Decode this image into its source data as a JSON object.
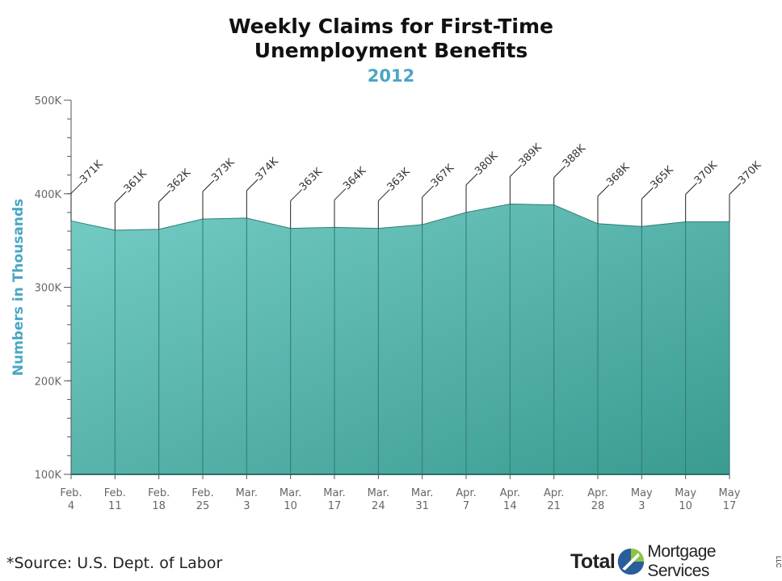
{
  "title_line1": "Weekly Claims for First-Time",
  "title_line2": "Unemployment Benefits",
  "subtitle": "2012",
  "source": "*Source: U.S. Dept. of Labor",
  "logo": {
    "word1": "Total",
    "word2": "Mortgage Services",
    "suffix": "LLC"
  },
  "colors": {
    "fill_top": "#74ccc5",
    "fill_bottom": "#3a9b91",
    "accent": "#4aa6c4",
    "line": "#2f7f77"
  },
  "chart_data": {
    "type": "area",
    "ylabel": "Numbers in Thousands",
    "ylim": [
      100,
      500
    ],
    "yticks": [
      100,
      200,
      300,
      400,
      500
    ],
    "ytick_labels": [
      "100K",
      "200K",
      "300K",
      "400K",
      "500K"
    ],
    "categories": [
      [
        "Feb.",
        "4"
      ],
      [
        "Feb.",
        "11"
      ],
      [
        "Feb.",
        "18"
      ],
      [
        "Feb.",
        "25"
      ],
      [
        "Mar.",
        "3"
      ],
      [
        "Mar.",
        "10"
      ],
      [
        "Mar.",
        "17"
      ],
      [
        "Mar.",
        "24"
      ],
      [
        "Mar.",
        "31"
      ],
      [
        "Apr.",
        "7"
      ],
      [
        "Apr.",
        "14"
      ],
      [
        "Apr.",
        "21"
      ],
      [
        "Apr.",
        "28"
      ],
      [
        "May",
        "3"
      ],
      [
        "May",
        "10"
      ],
      [
        "May",
        "17"
      ]
    ],
    "values": [
      371,
      361,
      362,
      373,
      374,
      363,
      364,
      363,
      367,
      380,
      389,
      388,
      368,
      365,
      370,
      370
    ],
    "data_labels": [
      "371K",
      "361K",
      "362K",
      "373K",
      "374K",
      "363K",
      "364K",
      "363K",
      "367K",
      "380K",
      "389K",
      "388K",
      "368K",
      "365K",
      "370K",
      "370K"
    ]
  }
}
